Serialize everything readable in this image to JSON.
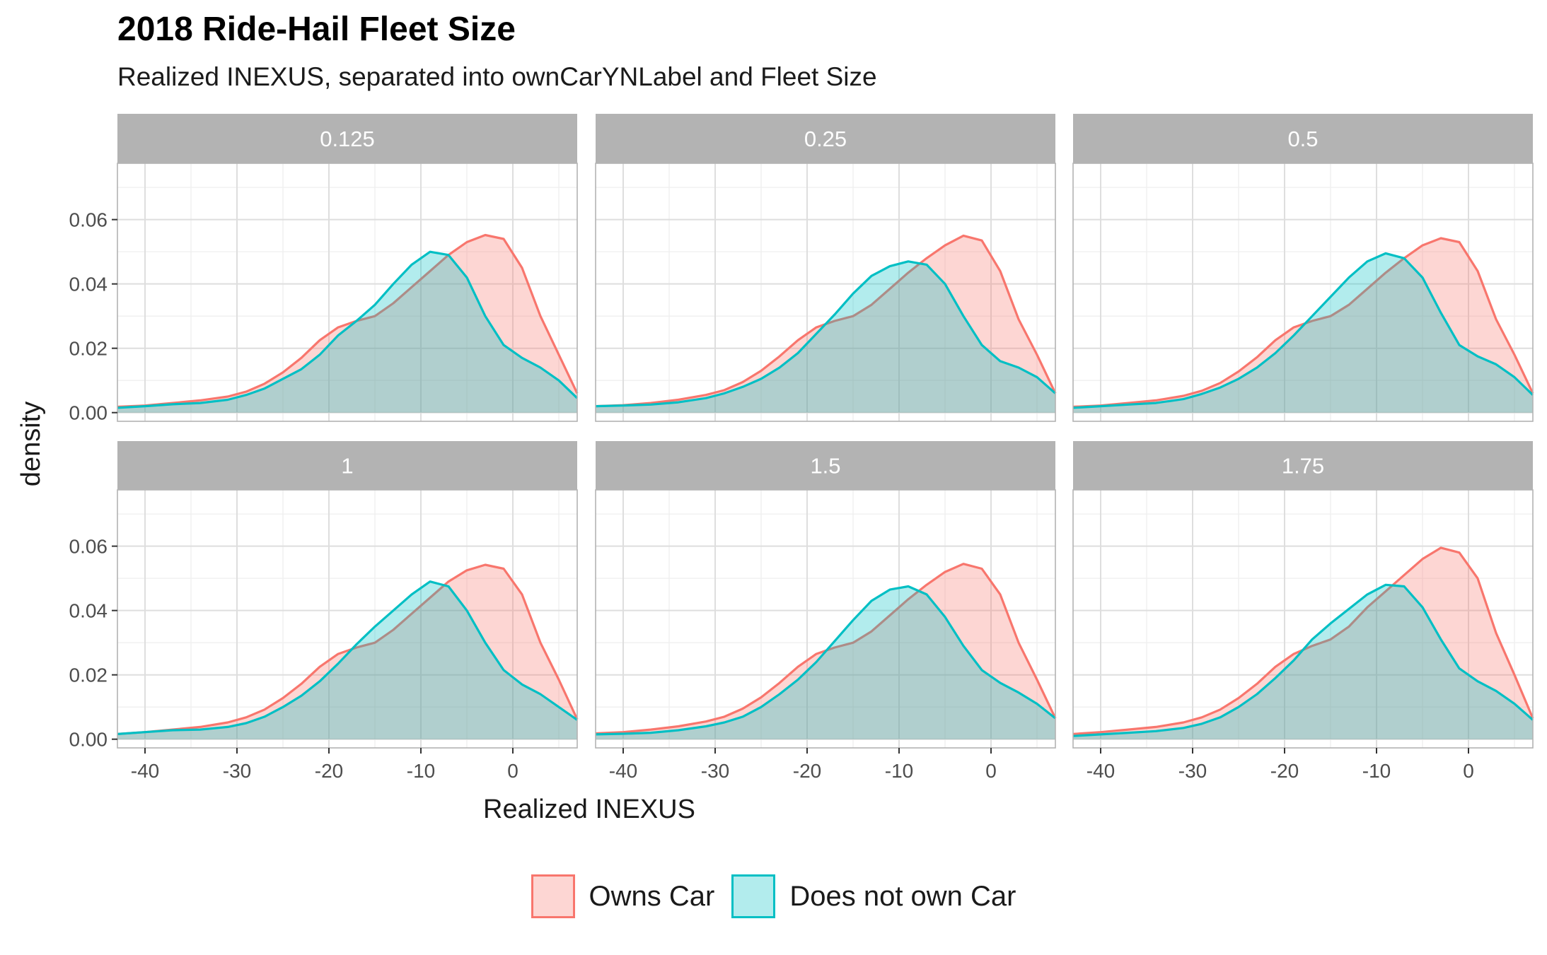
{
  "title": "2018 Ride-Hail Fleet Size",
  "subtitle": "Realized INEXUS, separated into ownCarYNLabel and Fleet Size",
  "colors": {
    "owns_car": "#F8766D",
    "no_car": "#00BFC4",
    "strip_bg": "#B3B3B3",
    "grid_major": "#DEDEDE",
    "grid_minor": "#EFEFEF"
  },
  "chart_data": {
    "type": "area",
    "xlabel": "Realized INEXUS",
    "ylabel": "density",
    "xlim": [
      -43,
      7
    ],
    "ylim": [
      -0.0027,
      0.0775
    ],
    "x_ticks": [
      -40,
      -30,
      -20,
      -10,
      0
    ],
    "x_tick_labels": [
      "-40",
      "-30",
      "-20",
      "-10",
      "0"
    ],
    "y_ticks": [
      0,
      0.02,
      0.04,
      0.06
    ],
    "y_tick_labels": [
      "0.00",
      "0.02",
      "0.04",
      "0.06"
    ],
    "grid": true,
    "legend": {
      "position": "bottom",
      "entries": [
        "Owns Car",
        "Does not own Car"
      ]
    },
    "x": [
      -43,
      -40,
      -37,
      -34,
      -31,
      -29,
      -27,
      -25,
      -23,
      -21,
      -19,
      -17,
      -15,
      -13,
      -11,
      -9,
      -7,
      -5,
      -3,
      -1,
      1,
      3,
      5,
      7
    ],
    "panels": [
      {
        "label": "0.125",
        "series": [
          {
            "name": "Owns Car",
            "values": [
              0.0018,
              0.0022,
              0.003,
              0.0038,
              0.005,
              0.0065,
              0.009,
              0.0125,
              0.017,
              0.0225,
              0.0265,
              0.0285,
              0.03,
              0.034,
              0.039,
              0.044,
              0.049,
              0.053,
              0.0552,
              0.054,
              0.045,
              0.03,
              0.018,
              0.006
            ]
          },
          {
            "name": "Does not own Car",
            "values": [
              0.0015,
              0.002,
              0.0026,
              0.003,
              0.004,
              0.0055,
              0.0075,
              0.0105,
              0.0135,
              0.018,
              0.024,
              0.0285,
              0.0335,
              0.04,
              0.046,
              0.05,
              0.049,
              0.042,
              0.03,
              0.021,
              0.017,
              0.014,
              0.01,
              0.0045
            ]
          }
        ]
      },
      {
        "label": "0.25",
        "series": [
          {
            "name": "Owns Car",
            "values": [
              0.002,
              0.0023,
              0.003,
              0.004,
              0.0055,
              0.007,
              0.0095,
              0.013,
              0.0175,
              0.0225,
              0.0265,
              0.0285,
              0.03,
              0.0335,
              0.0385,
              0.0435,
              0.048,
              0.052,
              0.055,
              0.0535,
              0.044,
              0.029,
              0.018,
              0.006
            ]
          },
          {
            "name": "Does not own Car",
            "values": [
              0.002,
              0.0022,
              0.0025,
              0.0032,
              0.0045,
              0.006,
              0.008,
              0.0105,
              0.014,
              0.0185,
              0.0245,
              0.0305,
              0.037,
              0.0425,
              0.0455,
              0.047,
              0.046,
              0.04,
              0.03,
              0.021,
              0.016,
              0.014,
              0.011,
              0.006
            ]
          }
        ]
      },
      {
        "label": "0.5",
        "series": [
          {
            "name": "Owns Car",
            "values": [
              0.0018,
              0.0022,
              0.003,
              0.0038,
              0.0052,
              0.0068,
              0.0092,
              0.0128,
              0.0172,
              0.0225,
              0.0265,
              0.0285,
              0.03,
              0.0335,
              0.0385,
              0.0435,
              0.048,
              0.052,
              0.0542,
              0.053,
              0.044,
              0.029,
              0.018,
              0.006
            ]
          },
          {
            "name": "Does not own Car",
            "values": [
              0.0015,
              0.002,
              0.0025,
              0.003,
              0.0042,
              0.0058,
              0.0078,
              0.0105,
              0.014,
              0.0185,
              0.024,
              0.03,
              0.036,
              0.042,
              0.047,
              0.0495,
              0.048,
              0.042,
              0.031,
              0.021,
              0.0175,
              0.015,
              0.011,
              0.0055
            ]
          }
        ]
      },
      {
        "label": "1",
        "series": [
          {
            "name": "Owns Car",
            "values": [
              0.0016,
              0.0022,
              0.003,
              0.0038,
              0.0052,
              0.0068,
              0.0092,
              0.0128,
              0.0172,
              0.0225,
              0.0265,
              0.0285,
              0.03,
              0.034,
              0.039,
              0.044,
              0.049,
              0.0525,
              0.0542,
              0.053,
              0.045,
              0.03,
              0.0185,
              0.0062
            ]
          },
          {
            "name": "Does not own Car",
            "values": [
              0.0016,
              0.0022,
              0.0028,
              0.003,
              0.0038,
              0.005,
              0.007,
              0.01,
              0.0135,
              0.018,
              0.0235,
              0.0295,
              0.035,
              0.04,
              0.045,
              0.049,
              0.0475,
              0.04,
              0.03,
              0.0215,
              0.017,
              0.014,
              0.01,
              0.006
            ]
          }
        ]
      },
      {
        "label": "1.5",
        "series": [
          {
            "name": "Owns Car",
            "values": [
              0.0018,
              0.0022,
              0.003,
              0.004,
              0.0055,
              0.007,
              0.0095,
              0.013,
              0.0175,
              0.0225,
              0.0265,
              0.0285,
              0.03,
              0.0335,
              0.0385,
              0.0435,
              0.048,
              0.052,
              0.0545,
              0.053,
              0.045,
              0.03,
              0.0185,
              0.0065
            ]
          },
          {
            "name": "Does not own Car",
            "values": [
              0.0015,
              0.0017,
              0.002,
              0.0028,
              0.004,
              0.0052,
              0.007,
              0.01,
              0.014,
              0.0185,
              0.024,
              0.0305,
              0.037,
              0.043,
              0.0465,
              0.0475,
              0.045,
              0.038,
              0.029,
              0.0215,
              0.0175,
              0.0145,
              0.011,
              0.0065
            ]
          }
        ]
      },
      {
        "label": "1.75",
        "series": [
          {
            "name": "Owns Car",
            "values": [
              0.0016,
              0.0022,
              0.003,
              0.0038,
              0.0052,
              0.0068,
              0.0092,
              0.0128,
              0.0172,
              0.0225,
              0.0265,
              0.029,
              0.031,
              0.035,
              0.041,
              0.046,
              0.051,
              0.056,
              0.0595,
              0.058,
              0.05,
              0.033,
              0.02,
              0.0065
            ]
          },
          {
            "name": "Does not own Car",
            "values": [
              0.001,
              0.0015,
              0.002,
              0.0025,
              0.0035,
              0.0048,
              0.0068,
              0.01,
              0.014,
              0.019,
              0.0245,
              0.031,
              0.036,
              0.0405,
              0.045,
              0.048,
              0.0475,
              0.041,
              0.031,
              0.022,
              0.018,
              0.015,
              0.011,
              0.006
            ]
          }
        ]
      }
    ]
  }
}
